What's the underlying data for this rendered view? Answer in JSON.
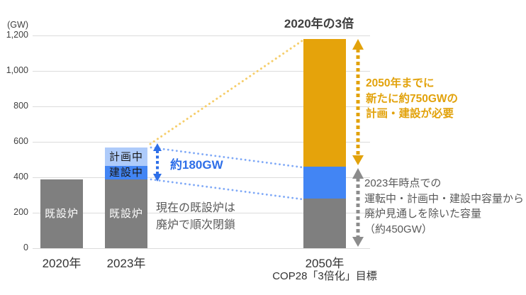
{
  "chart_data": {
    "type": "bar",
    "unit_label": "(GW)",
    "ylim": [
      0,
      1200
    ],
    "grid": true,
    "legend": "none (labels inside bars)",
    "ytick_values": [
      0,
      200,
      400,
      600,
      800,
      1000,
      1200
    ],
    "ytick_labels": [
      "0",
      "200",
      "400",
      "600",
      "800",
      "1,000",
      "1,200"
    ],
    "bars": [
      {
        "category_lines": [
          "2020年"
        ],
        "segments": [
          {
            "value": 390,
            "color_key": "gray_bar",
            "label": "既設炉",
            "label_style": "light"
          }
        ]
      },
      {
        "category_lines": [
          "2023年"
        ],
        "segments": [
          {
            "value": 390,
            "color_key": "gray_bar",
            "label": "既設炉",
            "label_style": "light"
          },
          {
            "value": 75,
            "color_key": "blue_bar",
            "label": "建設中",
            "label_style": "dark"
          },
          {
            "value": 105,
            "color_key": "lightblue_bar",
            "label": "計画中",
            "label_style": "dark"
          }
        ]
      },
      {
        "category_lines": [
          "2050年",
          "COP28「3倍化」目標"
        ],
        "segments": [
          {
            "value": 280,
            "color_key": "gray_bar"
          },
          {
            "value": 180,
            "color_key": "blue_bar"
          },
          {
            "value": 720,
            "color_key": "gold_bar"
          }
        ]
      }
    ],
    "annotations": {
      "target_title": "2020年の3倍",
      "arrow_label_180": "約180GW",
      "closure_note": [
        "現在の既設炉は",
        "廃炉で順次閉鎖"
      ],
      "new_build_note": [
        "2050年までに",
        "新たに約750GWの",
        "計画・建設が必要"
      ],
      "remaining_note": [
        "2023年時点での",
        "運転中・計画中・建設中容量から",
        "廃炉見通しを除いた容量",
        "（約450GW）"
      ]
    },
    "colors": {
      "gray_bar": "#7F7F7F",
      "blue_bar": "#4285F4",
      "lightblue_bar": "#AECBFA",
      "gold_bar": "#E5A30B",
      "blue_accent": "#2E6FE8",
      "gold_accent": "#E2A20B",
      "gray_accent": "#8C8C8C",
      "yellow_dotted": "#F6CE6B",
      "lightblue_dotted": "#7FA9F7",
      "axis_text": "#404040",
      "note_text": "#595959",
      "gridline": "#DCDCDC"
    }
  }
}
